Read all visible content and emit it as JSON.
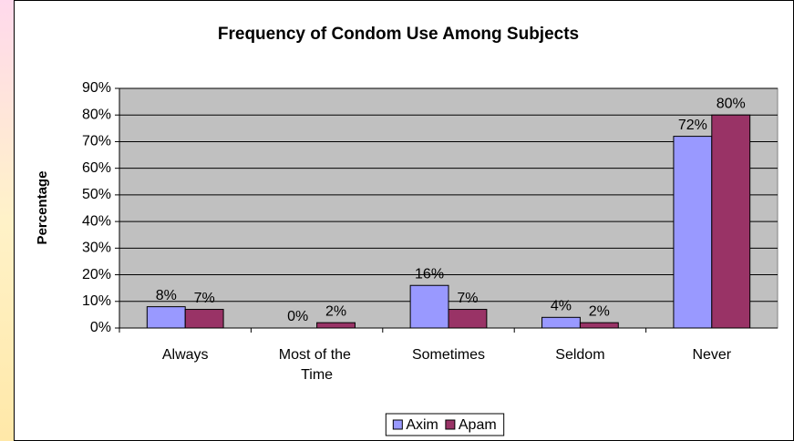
{
  "chart_data": {
    "type": "bar",
    "title": "Frequency of Condom Use Among Subjects",
    "y_label": "Percentage",
    "categories": [
      "Always",
      "Most of the Time",
      "Sometimes",
      "Seldom",
      "Never"
    ],
    "series": [
      {
        "name": "Axim",
        "color": "#9999ff",
        "values": [
          8,
          0,
          16,
          4,
          72
        ],
        "value_labels": [
          "8%",
          "0%",
          "16%",
          "4%",
          "72%"
        ]
      },
      {
        "name": "Apam",
        "color": "#993366",
        "values": [
          7,
          2,
          7,
          2,
          80
        ],
        "value_labels": [
          "7%",
          "2%",
          "7%",
          "2%",
          "80%"
        ]
      }
    ],
    "ylim": [
      0,
      90
    ],
    "yticks": [
      {
        "value": 0,
        "label": "0%"
      },
      {
        "value": 10,
        "label": "10%"
      },
      {
        "value": 20,
        "label": "20%"
      },
      {
        "value": 30,
        "label": "30%"
      },
      {
        "value": 40,
        "label": "40%"
      },
      {
        "value": 50,
        "label": "50%"
      },
      {
        "value": 60,
        "label": "60%"
      },
      {
        "value": 70,
        "label": "70%"
      },
      {
        "value": 80,
        "label": "80%"
      },
      {
        "value": 90,
        "label": "90%"
      }
    ],
    "grid": true,
    "legend": "bottom"
  }
}
